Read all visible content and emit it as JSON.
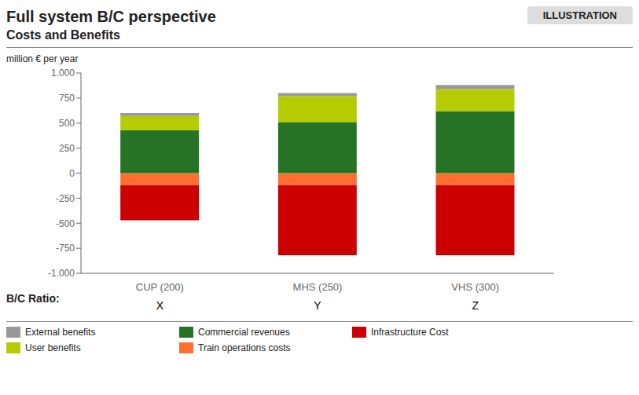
{
  "chart_data": {
    "type": "bar",
    "stacked": true,
    "grid": false,
    "title": "Full system B/C perspective",
    "subtitle": "Costs and Benefits",
    "ylabel": "million € per year",
    "annotations": [
      {
        "text": "ILLUSTRATION"
      }
    ],
    "bc_ratios": {
      "label": "B/C Ratio:",
      "values": [
        "X",
        "Y",
        "Z"
      ]
    },
    "categories": [
      "CUP (200)",
      "MHS (250)",
      "VHS (300)"
    ],
    "series": [
      {
        "name": "Train operations costs",
        "color": "#ff7030",
        "values": [
          -120,
          -120,
          -120
        ]
      },
      {
        "name": "Infrastructure Cost",
        "color": "#cc0000",
        "values": [
          -350,
          -700,
          -700
        ]
      },
      {
        "name": "Commercial revenues",
        "color": "#267326",
        "values": [
          430,
          510,
          620
        ]
      },
      {
        "name": "User benefits",
        "color": "#b5cc00",
        "values": [
          140,
          260,
          220
        ]
      },
      {
        "name": "External benefits",
        "color": "#999999",
        "values": [
          30,
          30,
          40
        ]
      }
    ],
    "legend_order": [
      "External benefits",
      "Commercial revenues",
      "Infrastructure Cost",
      "User benefits",
      "Train operations costs"
    ],
    "ylim": [
      -1000,
      1000
    ],
    "yticks": [
      {
        "value": -1000,
        "label": "-1.000"
      },
      -750,
      -500,
      -250,
      0,
      250,
      500,
      750,
      {
        "value": 1000,
        "label": "1.000"
      }
    ]
  }
}
